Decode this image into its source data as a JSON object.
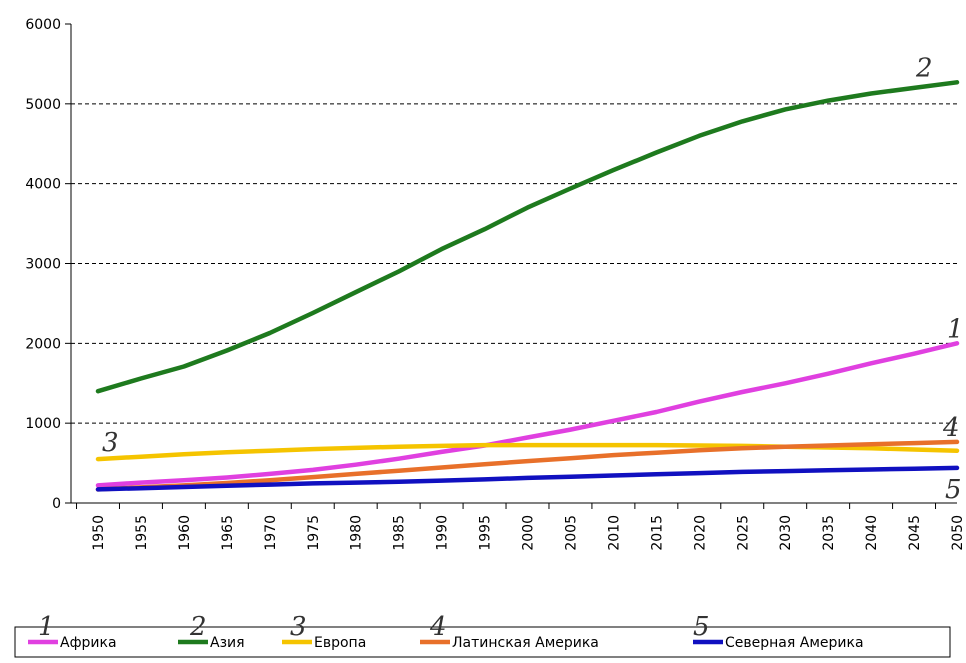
{
  "chart_data": {
    "type": "line",
    "title": "",
    "xlabel": "",
    "ylabel": "",
    "ylim": [
      0,
      6000
    ],
    "yticks": [
      0,
      1000,
      2000,
      3000,
      4000,
      5000,
      6000
    ],
    "gridlines": "horizontal dashed at 1000-5000",
    "x": [
      "1950",
      "1955",
      "1960",
      "1965",
      "1970",
      "1975",
      "1980",
      "1985",
      "1990",
      "1995",
      "2000",
      "2005",
      "2010",
      "2015",
      "2020",
      "2025",
      "2030",
      "2035",
      "2040",
      "2045",
      "2050"
    ],
    "series": [
      {
        "name": "Африка",
        "label": "1",
        "color": "#e040e0",
        "values": [
          220,
          255,
          285,
          320,
          365,
          415,
          480,
          555,
          640,
          720,
          820,
          920,
          1030,
          1140,
          1270,
          1390,
          1500,
          1620,
          1750,
          1870,
          2000
        ]
      },
      {
        "name": "Азия",
        "label": "2",
        "color": "#1e7a1e",
        "values": [
          1400,
          1560,
          1710,
          1910,
          2130,
          2380,
          2640,
          2900,
          3180,
          3430,
          3700,
          3940,
          4170,
          4390,
          4600,
          4780,
          4930,
          5040,
          5130,
          5200,
          5270
        ]
      },
      {
        "name": "Европа",
        "label": "3",
        "color": "#f5c400",
        "values": [
          550,
          580,
          610,
          635,
          655,
          675,
          690,
          705,
          715,
          725,
          725,
          725,
          725,
          725,
          720,
          715,
          705,
          695,
          685,
          670,
          655
        ]
      },
      {
        "name": "Латинская Америка",
        "label": "4",
        "color": "#e8702a",
        "values": [
          170,
          195,
          220,
          250,
          285,
          325,
          365,
          405,
          445,
          485,
          525,
          560,
          600,
          630,
          660,
          685,
          705,
          720,
          735,
          750,
          765
        ]
      },
      {
        "name": "Северная Америка",
        "label": "5",
        "color": "#1010c0",
        "values": [
          170,
          185,
          200,
          215,
          230,
          245,
          255,
          265,
          280,
          295,
          315,
          330,
          345,
          360,
          375,
          390,
          400,
          410,
          420,
          430,
          440
        ]
      }
    ],
    "legend": {
      "placement": "bottom"
    }
  }
}
